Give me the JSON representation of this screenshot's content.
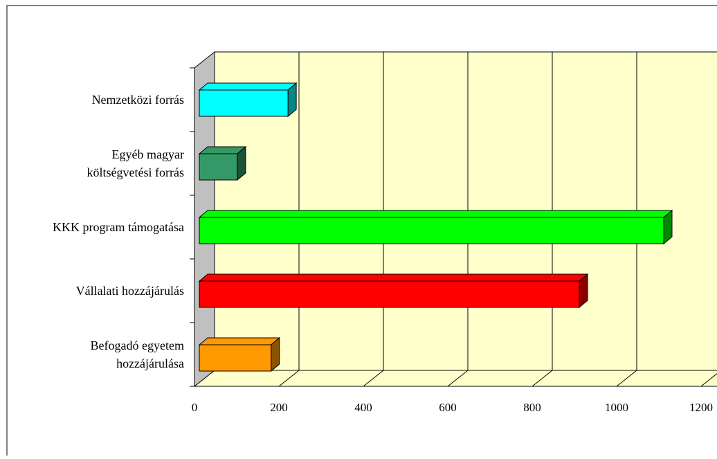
{
  "chart_data": {
    "type": "bar",
    "orientation": "horizontal",
    "style": "3d",
    "categories": [
      "Befogadó egyetem hozzájárulása",
      "Vállalati hozzájárulás",
      "KKK program támogatása",
      "Egyéb magyar költségvetési forrás",
      "Nemzetközi forrás"
    ],
    "category_lines": [
      [
        "Befogadó egyetem",
        "hozzájárulása"
      ],
      [
        "Vállalati hozzájárulás"
      ],
      [
        "KKK program támogatása"
      ],
      [
        "Egyéb magyar",
        "költségvetési forrás"
      ],
      [
        "Nemzetközi forrás"
      ]
    ],
    "values": [
      170,
      900,
      1100,
      90,
      210
    ],
    "colors": [
      "#FF9900",
      "#FF0000",
      "#00FF00",
      "#339966",
      "#00FFFF"
    ],
    "side_colors": [
      "#8A5300",
      "#8A0000",
      "#008A00",
      "#1C5237",
      "#008A8A"
    ],
    "xlim": [
      0,
      1200
    ],
    "xticks": [
      0,
      200,
      400,
      600,
      800,
      1000,
      1200
    ],
    "grid": true,
    "wall_color": "#FFFFCC",
    "floor_color": "#FFFFCC",
    "side_wall_color": "#C0C0C0",
    "legend": "none",
    "title": "",
    "xlabel": "",
    "ylabel": ""
  }
}
